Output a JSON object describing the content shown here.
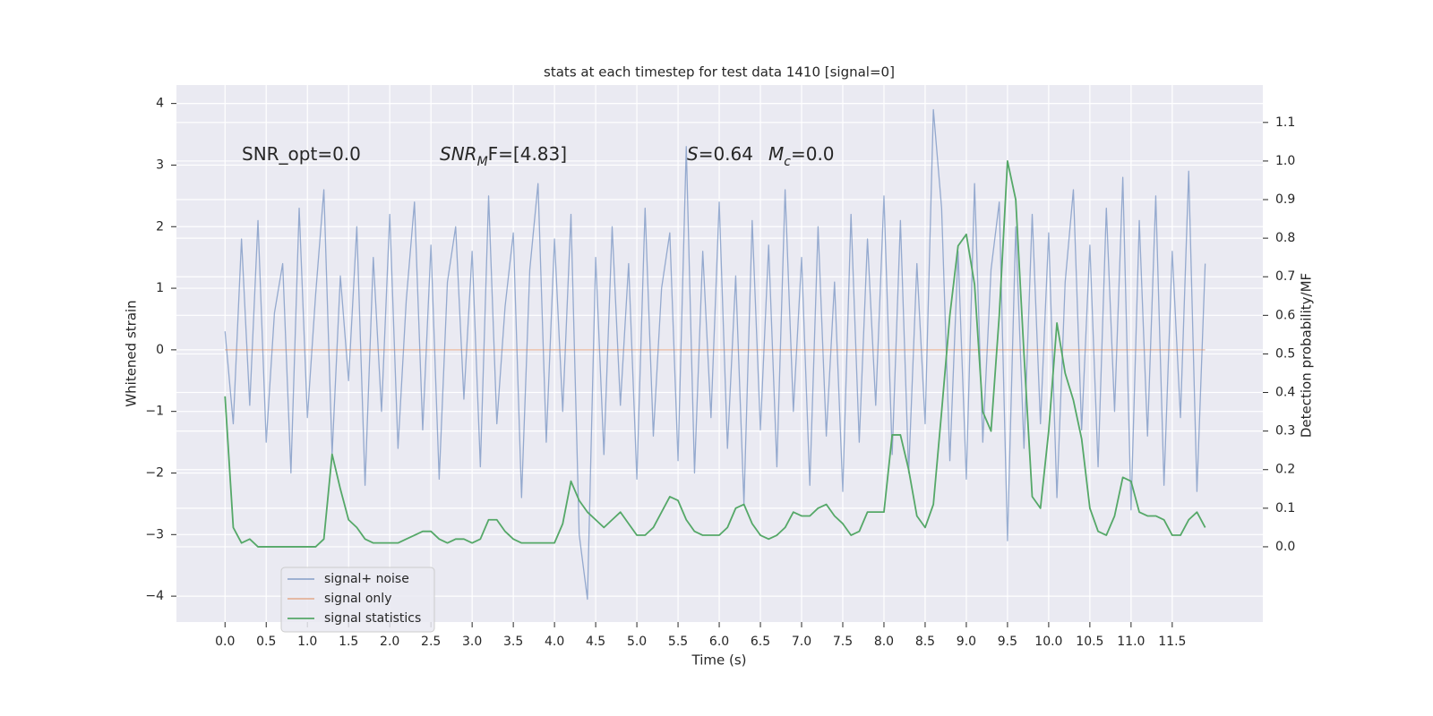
{
  "chart_data": {
    "type": "line",
    "title": "stats at each timestep for test data 1410 [signal=0]",
    "x_label": "Time (s)",
    "y_label": "Whitened strain",
    "y2_label": "Detection probability/MF",
    "annotations": [
      {
        "parts": [
          "SNR_opt=0.0"
        ]
      },
      {
        "parts": [
          "SNR",
          "M",
          "F=[4.83]"
        ]
      },
      {
        "parts": [
          "S",
          "=0.64"
        ]
      },
      {
        "parts": [
          "M",
          "c",
          "=0.0"
        ]
      }
    ],
    "x": [
      0.0,
      0.1,
      0.2,
      0.3,
      0.4,
      0.5,
      0.6,
      0.7,
      0.8,
      0.9,
      1.0,
      1.1,
      1.2,
      1.3,
      1.4,
      1.5,
      1.6,
      1.7,
      1.8,
      1.9,
      2.0,
      2.1,
      2.2,
      2.3,
      2.4,
      2.5,
      2.6,
      2.7,
      2.8,
      2.9,
      3.0,
      3.1,
      3.2,
      3.3,
      3.4,
      3.5,
      3.6,
      3.7,
      3.8,
      3.9,
      4.0,
      4.1,
      4.2,
      4.3,
      4.4,
      4.5,
      4.6,
      4.7,
      4.8,
      4.9,
      5.0,
      5.1,
      5.2,
      5.3,
      5.4,
      5.5,
      5.6,
      5.7,
      5.8,
      5.9,
      6.0,
      6.1,
      6.2,
      6.3,
      6.4,
      6.5,
      6.6,
      6.7,
      6.8,
      6.9,
      7.0,
      7.1,
      7.2,
      7.3,
      7.4,
      7.5,
      7.6,
      7.7,
      7.8,
      7.9,
      8.0,
      8.1,
      8.2,
      8.3,
      8.4,
      8.5,
      8.6,
      8.7,
      8.8,
      8.9,
      9.0,
      9.1,
      9.2,
      9.3,
      9.4,
      9.5,
      9.6,
      9.7,
      9.8,
      9.9,
      10.0,
      10.1,
      10.2,
      10.3,
      10.4,
      10.5,
      10.6,
      10.7,
      10.8,
      10.9,
      11.0,
      11.1,
      11.2,
      11.3,
      11.4,
      11.5,
      11.6,
      11.7,
      11.8,
      11.9
    ],
    "series": [
      {
        "name": "signal+ noise",
        "color": "#4c72b0",
        "values": [
          0.3,
          -1.2,
          1.8,
          -0.9,
          2.1,
          -1.5,
          0.6,
          1.4,
          -2.0,
          2.3,
          -1.1,
          0.9,
          2.6,
          -1.7,
          1.2,
          -0.5,
          2.0,
          -2.2,
          1.5,
          -1.0,
          2.2,
          -1.6,
          0.8,
          2.4,
          -1.3,
          1.7,
          -2.1,
          1.1,
          2.0,
          -0.8,
          1.6,
          -1.9,
          2.5,
          -1.2,
          0.7,
          1.9,
          -2.4,
          1.3,
          2.7,
          -1.5,
          1.8,
          -1.0,
          2.2,
          -3.0,
          -4.05,
          1.5,
          -1.7,
          2.0,
          -0.9,
          1.4,
          -2.1,
          2.3,
          -1.4,
          1.0,
          1.9,
          -1.8,
          3.3,
          -2.0,
          1.6,
          -1.1,
          2.4,
          -1.6,
          1.2,
          -2.5,
          2.1,
          -1.3,
          1.7,
          -1.9,
          2.6,
          -1.0,
          1.5,
          -2.2,
          2.0,
          -1.4,
          1.1,
          -2.3,
          2.2,
          -1.5,
          1.8,
          -0.9,
          2.5,
          -1.7,
          2.1,
          -2.0,
          1.4,
          -1.2,
          3.9,
          2.3,
          -1.8,
          1.6,
          -2.1,
          2.7,
          -1.5,
          1.3,
          2.4,
          -3.1,
          2.0,
          -1.6,
          2.2,
          -1.2,
          1.9,
          -2.4,
          1.1,
          2.6,
          -1.3,
          1.7,
          -1.9,
          2.3,
          -1.0,
          2.8,
          -2.6,
          2.1,
          -1.4,
          2.5,
          -2.2,
          1.6,
          -1.1,
          2.9,
          -2.3,
          1.4
        ]
      },
      {
        "name": "signal only",
        "color": "#dd8452",
        "values": [
          0,
          0,
          0,
          0,
          0,
          0,
          0,
          0,
          0,
          0,
          0,
          0,
          0,
          0,
          0,
          0,
          0,
          0,
          0,
          0,
          0,
          0,
          0,
          0,
          0,
          0,
          0,
          0,
          0,
          0,
          0,
          0,
          0,
          0,
          0,
          0,
          0,
          0,
          0,
          0,
          0,
          0,
          0,
          0,
          0,
          0,
          0,
          0,
          0,
          0,
          0,
          0,
          0,
          0,
          0,
          0,
          0,
          0,
          0,
          0,
          0,
          0,
          0,
          0,
          0,
          0,
          0,
          0,
          0,
          0,
          0,
          0,
          0,
          0,
          0,
          0,
          0,
          0,
          0,
          0,
          0,
          0,
          0,
          0,
          0,
          0,
          0,
          0,
          0,
          0,
          0,
          0,
          0,
          0,
          0,
          0,
          0,
          0,
          0,
          0,
          0,
          0,
          0,
          0,
          0,
          0,
          0,
          0,
          0,
          0,
          0,
          0,
          0,
          0,
          0,
          0,
          0,
          0,
          0,
          0
        ]
      },
      {
        "name": "signal statistics",
        "color": "#55a868",
        "axis": "y2",
        "values": [
          0.39,
          0.05,
          0.01,
          0.02,
          0.0,
          0.0,
          0.0,
          0.0,
          0.0,
          0.0,
          0.0,
          0.0,
          0.02,
          0.24,
          0.15,
          0.07,
          0.05,
          0.02,
          0.01,
          0.01,
          0.01,
          0.01,
          0.02,
          0.03,
          0.04,
          0.04,
          0.02,
          0.01,
          0.02,
          0.02,
          0.01,
          0.02,
          0.07,
          0.07,
          0.04,
          0.02,
          0.01,
          0.01,
          0.01,
          0.01,
          0.01,
          0.06,
          0.17,
          0.12,
          0.09,
          0.07,
          0.05,
          0.07,
          0.09,
          0.06,
          0.03,
          0.03,
          0.05,
          0.09,
          0.13,
          0.12,
          0.07,
          0.04,
          0.03,
          0.03,
          0.03,
          0.05,
          0.1,
          0.11,
          0.06,
          0.03,
          0.02,
          0.03,
          0.05,
          0.09,
          0.08,
          0.08,
          0.1,
          0.11,
          0.08,
          0.06,
          0.03,
          0.04,
          0.09,
          0.09,
          0.09,
          0.29,
          0.29,
          0.2,
          0.08,
          0.05,
          0.11,
          0.35,
          0.6,
          0.78,
          0.81,
          0.68,
          0.35,
          0.3,
          0.6,
          1.0,
          0.9,
          0.5,
          0.13,
          0.1,
          0.3,
          0.58,
          0.45,
          0.38,
          0.28,
          0.1,
          0.04,
          0.03,
          0.08,
          0.18,
          0.17,
          0.09,
          0.08,
          0.08,
          0.07,
          0.03,
          0.03,
          0.07,
          0.09,
          0.05
        ]
      }
    ],
    "xlim": [
      -0.59,
      12.6
    ],
    "xticks": [
      {
        "value": 0,
        "label": "0.0"
      },
      0.5,
      {
        "value": 1,
        "label": "1.0"
      },
      1.5,
      {
        "value": 2,
        "label": "2.0"
      },
      2.5,
      {
        "value": 3,
        "label": "3.0"
      },
      3.5,
      {
        "value": 4,
        "label": "4.0"
      },
      4.5,
      {
        "value": 5,
        "label": "5.0"
      },
      5.5,
      {
        "value": 6,
        "label": "6.0"
      },
      6.5,
      {
        "value": 7,
        "label": "7.0"
      },
      7.5,
      {
        "value": 8,
        "label": "8.0"
      },
      8.5,
      {
        "value": 9,
        "label": "9.0"
      },
      9.5,
      {
        "value": 10,
        "label": "10.0"
      },
      10.5,
      {
        "value": 11,
        "label": "11.0"
      },
      11.5
    ],
    "ylim": [
      -4.42,
      4.3
    ],
    "yticks": [
      {
        "value": -4,
        "label": "−4"
      },
      {
        "value": -3,
        "label": "−3"
      },
      {
        "value": -2,
        "label": "−2"
      },
      {
        "value": -1,
        "label": "−1"
      },
      0,
      1,
      2,
      3,
      4
    ],
    "y2lim": [
      -0.195,
      1.197
    ],
    "y2ticks": [
      {
        "value": 0,
        "label": "0.0"
      },
      0.1,
      0.2,
      0.3,
      0.4,
      0.5,
      0.6,
      0.7,
      0.8,
      0.9,
      {
        "value": 1,
        "label": "1.0"
      },
      1.1
    ],
    "grid": true,
    "legend": "lower left"
  }
}
